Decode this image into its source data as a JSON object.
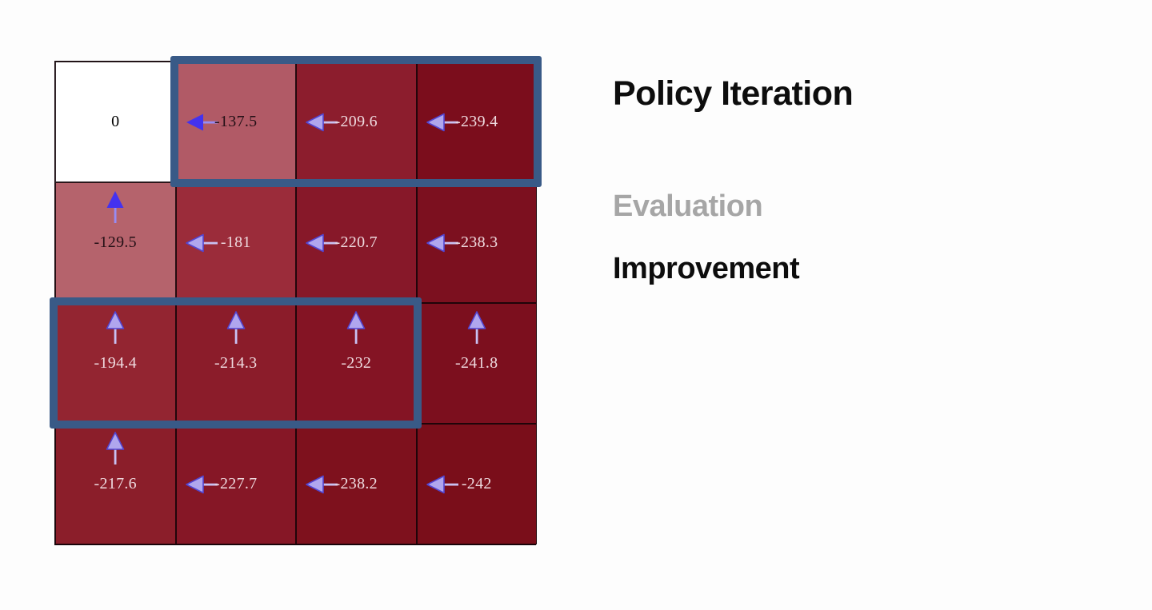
{
  "panel": {
    "title": "Policy Iteration",
    "items": [
      {
        "label": "Evaluation",
        "emphasis": "muted"
      },
      {
        "label": "Improvement",
        "emphasis": "strong"
      }
    ]
  },
  "colors": {
    "highlight_border": "#395a87",
    "arrow_solid_head": "#4432ef",
    "arrow_solid_stem": "#978cf4",
    "arrow_light_fill": "#b0a6ee",
    "arrow_light_stroke": "#5346d2",
    "arrow_light_stem": "#c9c1f2",
    "grid_line": "#140309"
  },
  "grid": {
    "rows": 4,
    "cols": 4,
    "cells": [
      {
        "row": 0,
        "col": 0,
        "value": "0",
        "bg": "#ffffff",
        "text_color": "#000000",
        "policy": null,
        "arrow_style": null
      },
      {
        "row": 0,
        "col": 1,
        "value": "-137.5",
        "bg": "#b15a66",
        "text_color": "#241016",
        "policy": "left",
        "arrow_style": "solid"
      },
      {
        "row": 0,
        "col": 2,
        "value": "-209.6",
        "bg": "#8c1d2d",
        "text_color": "#eed9de",
        "policy": "left",
        "arrow_style": "light"
      },
      {
        "row": 0,
        "col": 3,
        "value": "-239.4",
        "bg": "#7b0d1c",
        "text_color": "#eed9de",
        "policy": "left",
        "arrow_style": "light"
      },
      {
        "row": 1,
        "col": 0,
        "value": "-129.5",
        "bg": "#b5636c",
        "text_color": "#241016",
        "policy": "up",
        "arrow_style": "solid"
      },
      {
        "row": 1,
        "col": 1,
        "value": "-181",
        "bg": "#9b2c3a",
        "text_color": "#eed9de",
        "policy": "left",
        "arrow_style": "light"
      },
      {
        "row": 1,
        "col": 2,
        "value": "-220.7",
        "bg": "#871829",
        "text_color": "#eed9de",
        "policy": "left",
        "arrow_style": "light"
      },
      {
        "row": 1,
        "col": 3,
        "value": "-238.3",
        "bg": "#7c101f",
        "text_color": "#eed9de",
        "policy": "left",
        "arrow_style": "light"
      },
      {
        "row": 2,
        "col": 0,
        "value": "-194.4",
        "bg": "#932531",
        "text_color": "#eed9de",
        "policy": "up",
        "arrow_style": "light"
      },
      {
        "row": 2,
        "col": 1,
        "value": "-214.3",
        "bg": "#8b1c2a",
        "text_color": "#eed9de",
        "policy": "up",
        "arrow_style": "light"
      },
      {
        "row": 2,
        "col": 2,
        "value": "-232",
        "bg": "#841424",
        "text_color": "#eed9de",
        "policy": "up",
        "arrow_style": "light"
      },
      {
        "row": 2,
        "col": 3,
        "value": "-241.8",
        "bg": "#7c0f1e",
        "text_color": "#eed9de",
        "policy": "up",
        "arrow_style": "light"
      },
      {
        "row": 3,
        "col": 0,
        "value": "-217.6",
        "bg": "#8b1e2a",
        "text_color": "#eed9de",
        "policy": "up",
        "arrow_style": "light"
      },
      {
        "row": 3,
        "col": 1,
        "value": "-227.7",
        "bg": "#861726",
        "text_color": "#eed9de",
        "policy": "left",
        "arrow_style": "light"
      },
      {
        "row": 3,
        "col": 2,
        "value": "-238.2",
        "bg": "#7e111d",
        "text_color": "#eed9de",
        "policy": "left",
        "arrow_style": "light"
      },
      {
        "row": 3,
        "col": 3,
        "value": "-242",
        "bg": "#7a0e1a",
        "text_color": "#eed9de",
        "policy": "left",
        "arrow_style": "light"
      }
    ],
    "highlights": [
      {
        "row_start": 0,
        "row_end": 0,
        "col_start": 1,
        "col_end": 3
      },
      {
        "row_start": 2,
        "row_end": 2,
        "col_start": 0,
        "col_end": 2
      }
    ]
  }
}
